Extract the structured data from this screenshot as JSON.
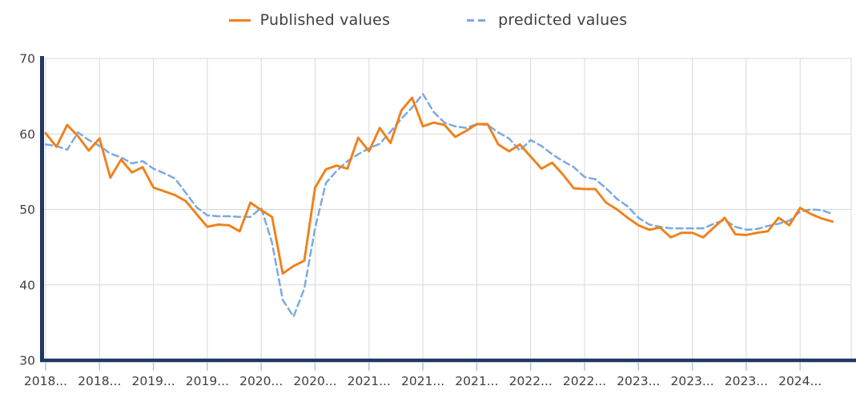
{
  "legend": {
    "published_label": "Published values",
    "predicted_label": "predicted values"
  },
  "colors": {
    "published": "#F0801A",
    "predicted": "#7CA9E2",
    "axis_line": "#1F3864",
    "gridline": "#D9D9D9",
    "tick_mark": "#AEC6E8",
    "label_text": "#404040"
  },
  "chart_data": {
    "type": "line",
    "title": "",
    "xlabel": "",
    "ylabel": "",
    "grid": true,
    "legend_position": "top-center",
    "y_axis": {
      "min": 30,
      "max": 70,
      "ticks": [
        70,
        60,
        50,
        40,
        30
      ]
    },
    "x_axis": {
      "tick_labels": [
        "2018...",
        "2018...",
        "2019...",
        "2019...",
        "2020...",
        "2020...",
        "2021...",
        "2021...",
        "2021...",
        "2022...",
        "2022...",
        "2023...",
        "2023...",
        "2023...",
        "2024..."
      ],
      "ticks_every_n_points": 5
    },
    "series": [
      {
        "name": "Published values",
        "style": "solid",
        "color": "#F0801A",
        "values": [
          60.1,
          58.3,
          61.2,
          59.7,
          57.8,
          59.4,
          54.2,
          56.6,
          54.9,
          55.6,
          52.9,
          52.4,
          51.9,
          51.1,
          49.4,
          47.7,
          48.0,
          47.9,
          47.1,
          50.9,
          49.9,
          49.0,
          41.5,
          42.5,
          43.2,
          52.9,
          55.3,
          55.8,
          55.4,
          59.5,
          57.7,
          60.8,
          58.8,
          63.1,
          64.8,
          61.0,
          61.5,
          61.2,
          59.6,
          60.4,
          61.3,
          61.3,
          58.6,
          57.7,
          58.6,
          57.0,
          55.4,
          56.2,
          54.6,
          52.8,
          52.7,
          52.7,
          50.9,
          50.0,
          48.9,
          47.9,
          47.3,
          47.6,
          46.3,
          46.9,
          46.9,
          46.3,
          47.6,
          48.9,
          46.7,
          46.6,
          46.9,
          47.1,
          48.9,
          47.9,
          50.2,
          49.4,
          48.8,
          48.4
        ]
      },
      {
        "name": "predicted values",
        "style": "dashed",
        "color": "#7CA9E2",
        "values": [
          58.6,
          58.4,
          57.9,
          60.2,
          59.2,
          58.4,
          57.4,
          56.9,
          56.1,
          56.4,
          55.4,
          54.8,
          54.1,
          52.2,
          50.3,
          49.2,
          49.1,
          49.1,
          49.0,
          49.0,
          50.2,
          45.6,
          38.0,
          35.8,
          39.5,
          47.5,
          53.5,
          55.1,
          56.4,
          57.3,
          58.1,
          58.7,
          60.3,
          62.0,
          63.5,
          65.3,
          62.9,
          61.5,
          61.0,
          60.8,
          61.3,
          61.2,
          60.2,
          59.4,
          57.8,
          59.2,
          58.4,
          57.3,
          56.4,
          55.6,
          54.3,
          54.0,
          52.8,
          51.4,
          50.4,
          48.9,
          48.0,
          47.7,
          47.5,
          47.5,
          47.5,
          47.5,
          48.1,
          48.6,
          47.7,
          47.3,
          47.4,
          47.8,
          48.1,
          48.5,
          49.7,
          50.0,
          49.9,
          49.4
        ]
      }
    ]
  }
}
